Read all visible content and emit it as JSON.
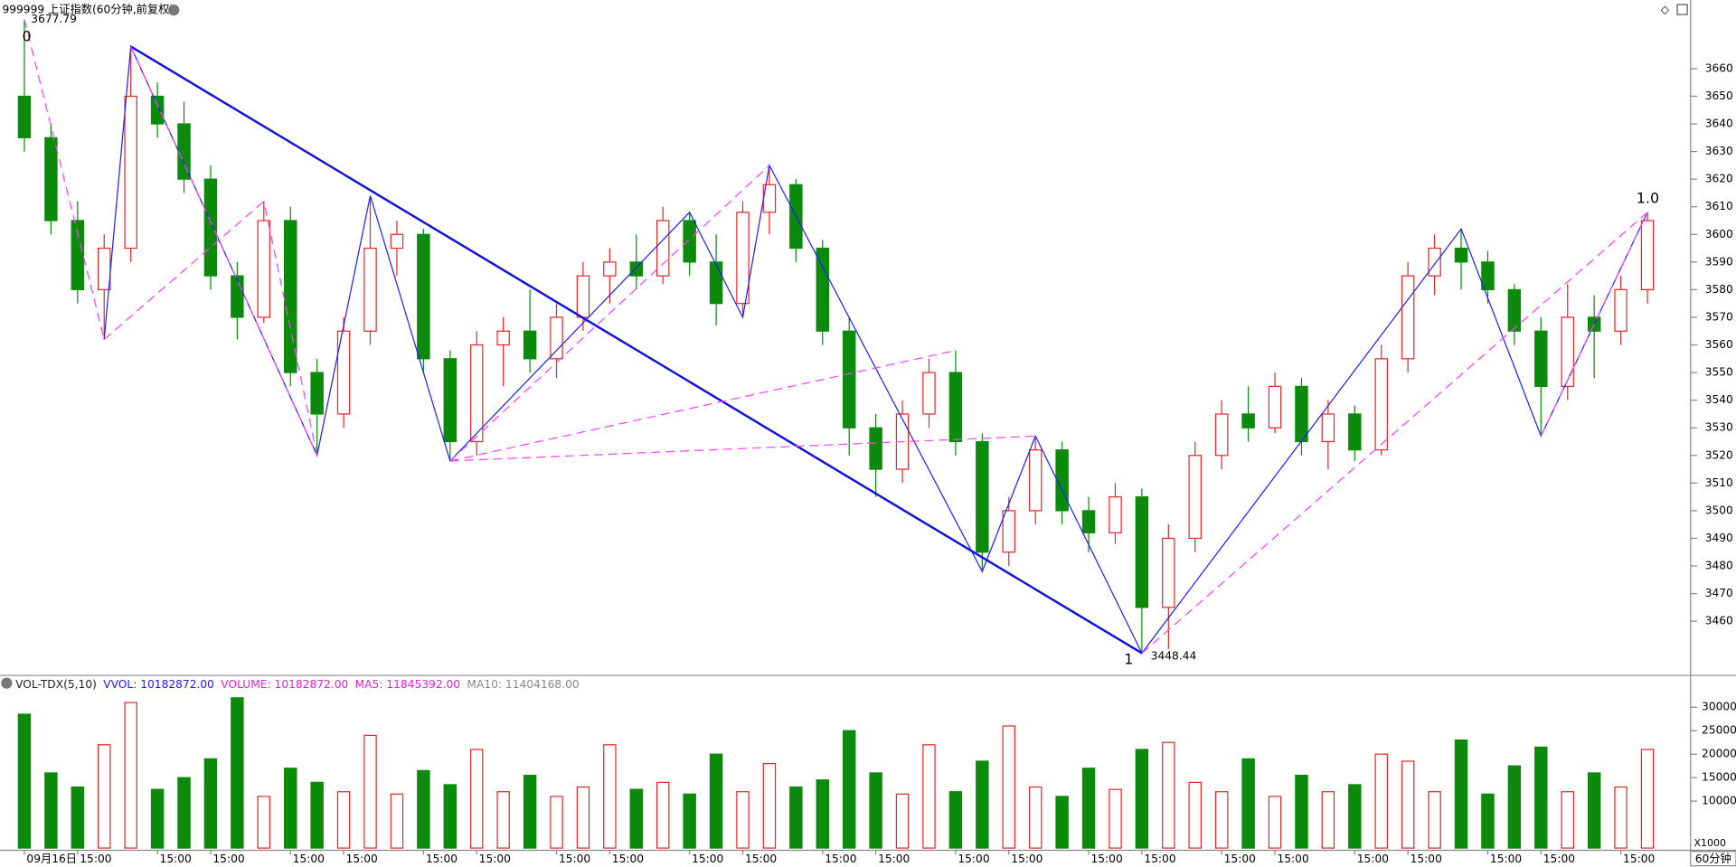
{
  "chart_data": {
    "type": "candlestick",
    "title": "999999 上证指数(60分钟,前复权)",
    "high_label": "3677.79",
    "start_label": "0",
    "low_label": "3448.44",
    "low_mark": "1",
    "end_label": "1.0",
    "ylim": [
      3440.4,
      3684.8
    ],
    "yticks": [
      3460,
      3470,
      3480,
      3490,
      3500,
      3510,
      3520,
      3530,
      3540,
      3550,
      3560,
      3570,
      3580,
      3590,
      3600,
      3610,
      3620,
      3630,
      3640,
      3650,
      3660
    ],
    "up_color": "#e8262b",
    "down_color": "#0b8a0b",
    "categories": [
      "09月16日",
      null,
      "15:00",
      null,
      null,
      "15:00",
      null,
      "15:00",
      null,
      null,
      "15:00",
      null,
      "15:00",
      null,
      null,
      "15:00",
      null,
      "15:00",
      null,
      null,
      "15:00",
      null,
      "15:00",
      null,
      null,
      "15:00",
      null,
      "15:00",
      null,
      null,
      "15:00",
      null,
      "15:00",
      null,
      null,
      "15:00",
      null,
      "15:00",
      null,
      null,
      "15:00",
      null,
      "15:00",
      null,
      null,
      "15:00",
      null,
      "15:00",
      null,
      null,
      "15:00",
      null,
      "15:00",
      null,
      null,
      "15:00",
      null,
      "15:00",
      null,
      null,
      "15:00",
      null
    ],
    "open": [
      3650,
      3635,
      3605,
      3580,
      3595,
      3650,
      3640,
      3620,
      3585,
      3570,
      3605,
      3550,
      3535,
      3565,
      3595,
      3600,
      3555,
      3525,
      3560,
      3565,
      3555,
      3570,
      3585,
      3590,
      3585,
      3605,
      3590,
      3575,
      3608,
      3618,
      3595,
      3565,
      3530,
      3515,
      3535,
      3550,
      3525,
      3485,
      3500,
      3522,
      3500,
      3492,
      3505,
      3465,
      3490,
      3520,
      3535,
      3530,
      3545,
      3525,
      3535,
      3522,
      3555,
      3585,
      3595,
      3590,
      3580,
      3565,
      3545,
      3570,
      3565,
      3580
    ],
    "high": [
      3677.79,
      3640,
      3612,
      3600,
      3668,
      3655,
      3648,
      3625,
      3590,
      3612,
      3610,
      3555,
      3570,
      3614,
      3605,
      3602,
      3558,
      3565,
      3570,
      3580,
      3575,
      3590,
      3595,
      3600,
      3610,
      3608,
      3600,
      3612,
      3625,
      3620,
      3598,
      3570,
      3535,
      3540,
      3555,
      3558,
      3528,
      3505,
      3527,
      3525,
      3505,
      3510,
      3508,
      3495,
      3525,
      3540,
      3545,
      3550,
      3548,
      3540,
      3538,
      3560,
      3590,
      3600,
      3602,
      3594,
      3582,
      3570,
      3582,
      3578,
      3585,
      3608
    ],
    "low": [
      3630,
      3600,
      3575,
      3562,
      3590,
      3635,
      3615,
      3580,
      3562,
      3568,
      3545,
      3520,
      3530,
      3560,
      3585,
      3550,
      3518,
      3520,
      3545,
      3550,
      3548,
      3565,
      3575,
      3580,
      3582,
      3585,
      3567,
      3570,
      3600,
      3590,
      3560,
      3520,
      3505,
      3510,
      3530,
      3520,
      3478,
      3480,
      3495,
      3495,
      3485,
      3488,
      3448.44,
      3450,
      3485,
      3515,
      3525,
      3528,
      3520,
      3515,
      3518,
      3520,
      3550,
      3578,
      3580,
      3575,
      3560,
      3527,
      3540,
      3548,
      3560,
      3575
    ],
    "close": [
      3635,
      3605,
      3580,
      3595,
      3650,
      3640,
      3620,
      3585,
      3570,
      3605,
      3550,
      3535,
      3565,
      3595,
      3600,
      3555,
      3525,
      3560,
      3565,
      3555,
      3570,
      3585,
      3590,
      3585,
      3605,
      3590,
      3575,
      3608,
      3618,
      3595,
      3565,
      3530,
      3515,
      3535,
      3550,
      3525,
      3485,
      3500,
      3522,
      3500,
      3492,
      3505,
      3465,
      3490,
      3520,
      3535,
      3530,
      3545,
      3525,
      3535,
      3522,
      3555,
      3585,
      3595,
      3590,
      3580,
      3565,
      3545,
      3570,
      3565,
      3580,
      3605
    ],
    "volume": [
      28500,
      16000,
      13000,
      22000,
      31000,
      12500,
      15000,
      19000,
      32000,
      11000,
      17000,
      14000,
      12000,
      24000,
      11500,
      16500,
      13500,
      21000,
      12000,
      15500,
      11000,
      13000,
      22000,
      12500,
      14000,
      11500,
      20000,
      12000,
      18000,
      13000,
      14500,
      25000,
      16000,
      11500,
      22000,
      12000,
      18500,
      26000,
      13000,
      11000,
      17000,
      12500,
      21000,
      22500,
      14000,
      12000,
      19000,
      11000,
      15500,
      12000,
      13500,
      20000,
      18500,
      12000,
      23000,
      11500,
      17500,
      21500,
      12000,
      16000,
      13000,
      21000
    ],
    "y2lim": [
      0,
      33000
    ],
    "y2ticks": [
      10000,
      15000,
      20000,
      25000,
      30000
    ],
    "volume_header": [
      {
        "text": "VOL-TDX(5,10)",
        "color": "#222222"
      },
      {
        "text": "VVOL: 10182872.00",
        "color": "#1a1aff"
      },
      {
        "text": "VOLUME: 10182872.00",
        "color": "#e020e0"
      },
      {
        "text": "MA5: 11845392.00",
        "color": "#e020e0"
      },
      {
        "text": "MA10: 11404168.00",
        "color": "#888888"
      }
    ],
    "volume_unit": "X1000",
    "period": "60分钟"
  }
}
